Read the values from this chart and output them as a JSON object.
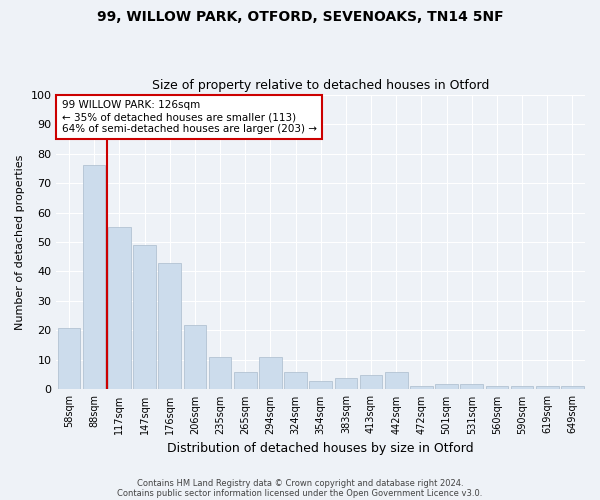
{
  "title1": "99, WILLOW PARK, OTFORD, SEVENOAKS, TN14 5NF",
  "title2": "Size of property relative to detached houses in Otford",
  "xlabel": "Distribution of detached houses by size in Otford",
  "ylabel": "Number of detached properties",
  "categories": [
    "58sqm",
    "88sqm",
    "117sqm",
    "147sqm",
    "176sqm",
    "206sqm",
    "235sqm",
    "265sqm",
    "294sqm",
    "324sqm",
    "354sqm",
    "383sqm",
    "413sqm",
    "442sqm",
    "472sqm",
    "501sqm",
    "531sqm",
    "560sqm",
    "590sqm",
    "619sqm",
    "649sqm"
  ],
  "values": [
    21,
    76,
    55,
    49,
    43,
    22,
    11,
    6,
    11,
    6,
    3,
    4,
    5,
    6,
    1,
    2,
    2,
    1,
    1,
    1,
    1
  ],
  "bar_color": "#ccdcec",
  "bar_edge_color": "#aabccc",
  "vline_color": "#cc0000",
  "annotation_text": "99 WILLOW PARK: 126sqm\n← 35% of detached houses are smaller (113)\n64% of semi-detached houses are larger (203) →",
  "annotation_box_color": "#ffffff",
  "annotation_box_edge": "#cc0000",
  "ylim": [
    0,
    100
  ],
  "yticks": [
    0,
    10,
    20,
    30,
    40,
    50,
    60,
    70,
    80,
    90,
    100
  ],
  "footer1": "Contains HM Land Registry data © Crown copyright and database right 2024.",
  "footer2": "Contains public sector information licensed under the Open Government Licence v3.0.",
  "bg_color": "#eef2f7",
  "grid_color": "#ffffff"
}
